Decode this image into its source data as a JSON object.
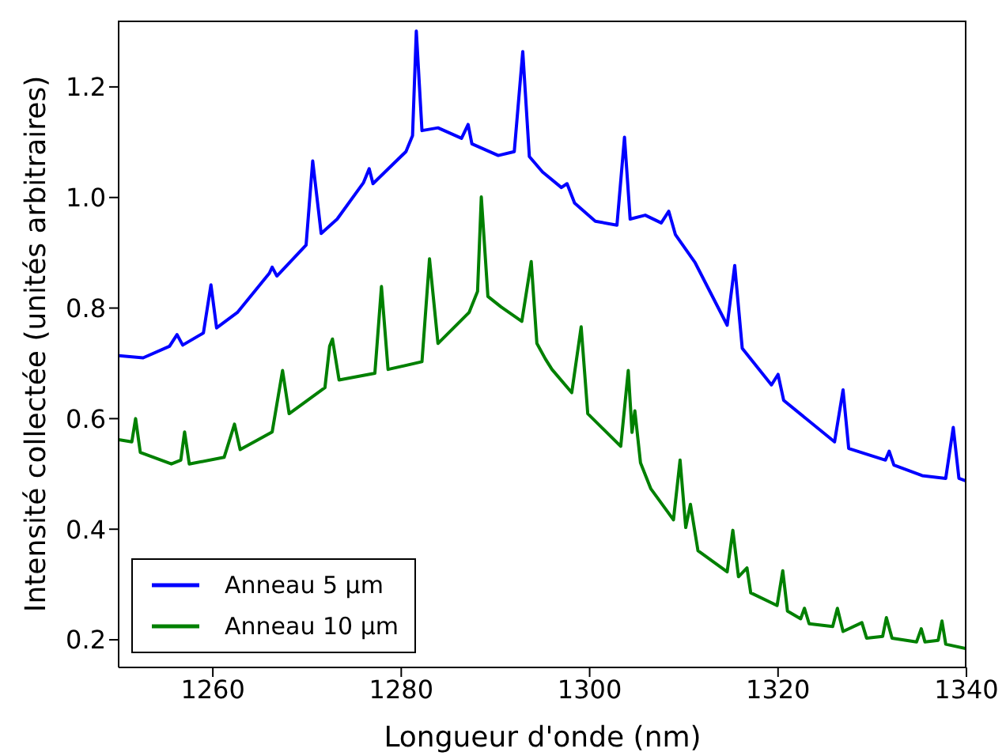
{
  "chart_data": {
    "type": "line",
    "xlabel": "Longueur d'onde (nm)",
    "ylabel": "Intensité collectée (unités arbitraires)",
    "xlim": [
      1250,
      1340
    ],
    "xticks": [
      1260,
      1280,
      1300,
      1320,
      1340
    ],
    "ylim": [
      0.15,
      1.32
    ],
    "yticks": [
      0.2,
      0.4,
      0.6,
      0.8,
      {
        "value": 1,
        "label": "1.0"
      },
      1.2
    ],
    "grid": false,
    "legend": "bottom left",
    "marker": "none",
    "line_style": "solid",
    "series": [
      {
        "name": "Anneau 5 μm",
        "color": "#0000ff",
        "x": [
          1250,
          1252.6,
          1255.4,
          1256.2,
          1256.8,
          1259.0,
          1259.8,
          1260.4,
          1262.6,
          1266.0,
          1266.3,
          1266.8,
          1269.9,
          1270.6,
          1271.5,
          1273.2,
          1276.0,
          1276.6,
          1277.0,
          1280.5,
          1281.2,
          1281.6,
          1282.2,
          1283.9,
          1286.4,
          1287.1,
          1287.5,
          1290.3,
          1292.0,
          1292.9,
          1293.6,
          1295.0,
          1297.0,
          1297.6,
          1298.4,
          1300.6,
          1302.9,
          1303.7,
          1304.3,
          1305.9,
          1307.6,
          1308.4,
          1309.1,
          1311.2,
          1314.6,
          1315.4,
          1316.2,
          1319.3,
          1320.0,
          1320.6,
          1326.0,
          1326.9,
          1327.5,
          1331.4,
          1331.8,
          1332.3,
          1335.3,
          1337.8,
          1338.6,
          1339.2,
          1340
        ],
        "values": [
          0.714,
          0.71,
          0.731,
          0.752,
          0.733,
          0.755,
          0.842,
          0.764,
          0.792,
          0.863,
          0.874,
          0.858,
          0.914,
          1.066,
          0.935,
          0.961,
          1.027,
          1.052,
          1.025,
          1.083,
          1.112,
          1.301,
          1.121,
          1.126,
          1.107,
          1.132,
          1.097,
          1.076,
          1.083,
          1.264,
          1.074,
          1.046,
          1.018,
          1.025,
          0.99,
          0.957,
          0.95,
          1.109,
          0.961,
          0.968,
          0.954,
          0.975,
          0.933,
          0.882,
          0.769,
          0.877,
          0.727,
          0.661,
          0.68,
          0.633,
          0.558,
          0.652,
          0.546,
          0.525,
          0.541,
          0.516,
          0.497,
          0.492,
          0.584,
          0.492,
          0.487
        ]
      },
      {
        "name": "Anneau 10 μm",
        "color": "#008000",
        "x": [
          1250,
          1251.4,
          1251.8,
          1252.3,
          1255.6,
          1256.6,
          1257.0,
          1257.5,
          1261.2,
          1262.3,
          1262.9,
          1266.3,
          1267.4,
          1268.1,
          1271.9,
          1272.4,
          1272.7,
          1273.4,
          1277.2,
          1277.9,
          1278.6,
          1282.2,
          1283.0,
          1283.9,
          1287.2,
          1288.1,
          1288.5,
          1289.2,
          1290.6,
          1292.8,
          1293.8,
          1294.4,
          1295.3,
          1296.0,
          1298.1,
          1299.1,
          1299.8,
          1303.3,
          1304.1,
          1304.5,
          1304.8,
          1305.4,
          1306.5,
          1308.9,
          1309.6,
          1310.2,
          1310.7,
          1311.5,
          1314.6,
          1315.2,
          1315.8,
          1316.7,
          1317.1,
          1319.9,
          1320.5,
          1321.0,
          1322.4,
          1322.8,
          1323.3,
          1325.8,
          1326.3,
          1326.9,
          1328.9,
          1329.4,
          1331.1,
          1331.5,
          1332.1,
          1334.7,
          1335.2,
          1335.6,
          1337.0,
          1337.4,
          1337.8,
          1340
        ],
        "values": [
          0.562,
          0.558,
          0.6,
          0.539,
          0.518,
          0.525,
          0.576,
          0.518,
          0.53,
          0.59,
          0.544,
          0.576,
          0.687,
          0.609,
          0.656,
          0.731,
          0.744,
          0.67,
          0.682,
          0.839,
          0.689,
          0.703,
          0.889,
          0.736,
          0.792,
          0.83,
          1.001,
          0.821,
          0.802,
          0.776,
          0.884,
          0.736,
          0.708,
          0.689,
          0.647,
          0.766,
          0.609,
          0.55,
          0.687,
          0.575,
          0.614,
          0.52,
          0.473,
          0.417,
          0.525,
          0.403,
          0.445,
          0.361,
          0.323,
          0.398,
          0.314,
          0.33,
          0.285,
          0.262,
          0.325,
          0.252,
          0.238,
          0.257,
          0.229,
          0.224,
          0.257,
          0.215,
          0.231,
          0.203,
          0.206,
          0.24,
          0.203,
          0.196,
          0.22,
          0.196,
          0.199,
          0.234,
          0.192,
          0.184
        ]
      }
    ]
  }
}
